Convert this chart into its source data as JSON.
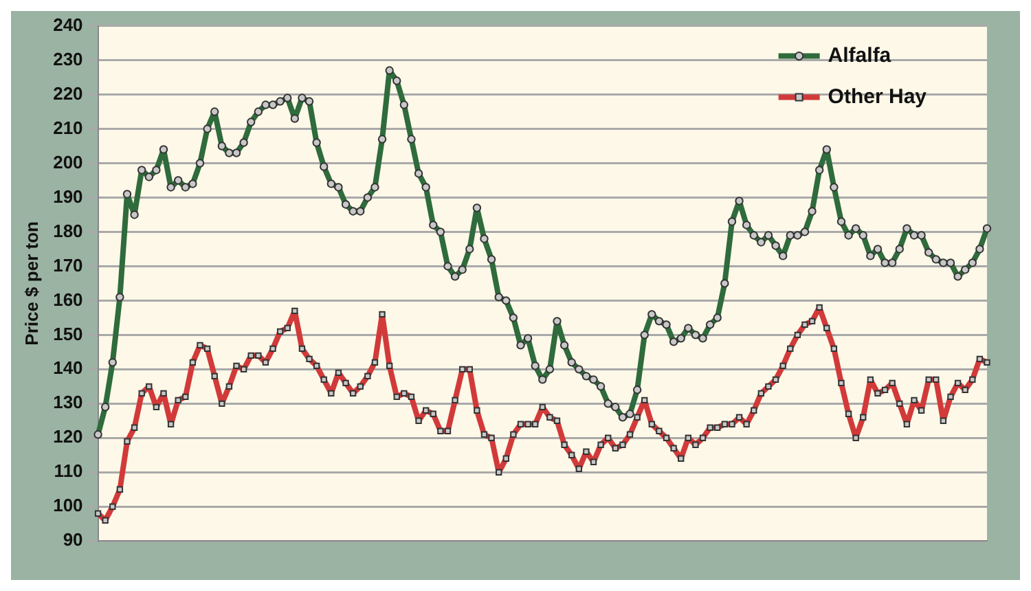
{
  "chart_data": {
    "type": "line",
    "ylabel": "Price $ per ton",
    "categories": [
      null,
      null,
      null,
      null,
      null,
      null,
      null,
      null,
      null,
      null,
      null,
      null,
      null,
      null,
      null,
      null,
      null,
      null,
      null,
      null,
      null,
      null,
      null,
      null,
      null,
      null,
      null,
      null,
      null,
      null,
      null,
      null,
      null,
      null,
      null,
      null,
      null,
      null,
      null,
      null,
      null,
      null,
      null,
      null,
      null,
      null,
      null,
      null,
      null,
      null,
      null,
      null,
      null,
      null,
      null,
      null,
      null,
      null,
      null,
      null,
      null,
      null,
      null,
      null,
      null,
      null,
      null,
      null,
      null,
      null,
      null,
      null,
      null,
      null,
      null,
      null,
      null,
      null,
      null,
      null,
      null,
      null,
      null,
      null,
      null,
      null,
      null,
      null,
      null,
      null,
      null,
      null,
      null,
      null,
      null,
      null,
      null,
      null,
      null,
      null,
      null,
      null,
      null,
      null,
      null,
      null,
      null,
      null,
      null,
      null,
      null,
      null,
      null,
      null,
      null,
      null,
      null,
      null,
      null,
      null,
      null,
      null,
      null
    ],
    "series": [
      {
        "name": "Alfalfa",
        "color": "#2f6b3c",
        "marker": "circle",
        "values": [
          121,
          129,
          142,
          161,
          191,
          185,
          198,
          196,
          198,
          204,
          193,
          195,
          193,
          194,
          200,
          210,
          215,
          205,
          203,
          203,
          206,
          212,
          215,
          217,
          217,
          218,
          219,
          213,
          219,
          218,
          206,
          199,
          194,
          193,
          188,
          186,
          186,
          190,
          193,
          207,
          227,
          224,
          217,
          207,
          197,
          193,
          182,
          180,
          170,
          167,
          169,
          175,
          187,
          178,
          172,
          161,
          160,
          155,
          147,
          149,
          141,
          137,
          140,
          154,
          147,
          142,
          140,
          138,
          137,
          135,
          130,
          129,
          126,
          127,
          134,
          150,
          156,
          154,
          153,
          148,
          149,
          152,
          150,
          149,
          153,
          155,
          165,
          183,
          189,
          182,
          179,
          177,
          179,
          176,
          173,
          179,
          179,
          180,
          186,
          198,
          204,
          193,
          183,
          179,
          181,
          179,
          173,
          175,
          171,
          171,
          175,
          181,
          179,
          179,
          174,
          172,
          171,
          171,
          167,
          169,
          171,
          175,
          181
        ]
      },
      {
        "name": "Other Hay",
        "color": "#d23a3a",
        "marker": "square",
        "values": [
          98,
          96,
          100,
          105,
          119,
          123,
          133,
          135,
          129,
          133,
          124,
          131,
          132,
          142,
          147,
          146,
          138,
          130,
          135,
          141,
          140,
          144,
          144,
          142,
          146,
          151,
          152,
          157,
          146,
          143,
          141,
          137,
          133,
          139,
          136,
          133,
          135,
          138,
          142,
          156,
          141,
          132,
          133,
          132,
          125,
          128,
          127,
          122,
          122,
          131,
          140,
          140,
          128,
          121,
          120,
          110,
          114,
          121,
          124,
          124,
          124,
          129,
          126,
          125,
          118,
          115,
          111,
          116,
          113,
          118,
          120,
          117,
          118,
          121,
          126,
          131,
          124,
          122,
          120,
          117,
          114,
          120,
          118,
          120,
          123,
          123,
          124,
          124,
          126,
          124,
          128,
          133,
          135,
          137,
          141,
          146,
          150,
          153,
          154,
          158,
          152,
          146,
          136,
          127,
          120,
          126,
          137,
          133,
          134,
          136,
          130,
          124,
          131,
          128,
          137,
          137,
          125,
          132,
          136,
          134,
          137,
          143,
          142
        ]
      }
    ],
    "ylim": [
      90,
      240
    ],
    "yticks": [
      90,
      100,
      110,
      120,
      130,
      140,
      150,
      160,
      170,
      180,
      190,
      200,
      210,
      220,
      230,
      240
    ],
    "grid": "y",
    "legend": "top right"
  }
}
